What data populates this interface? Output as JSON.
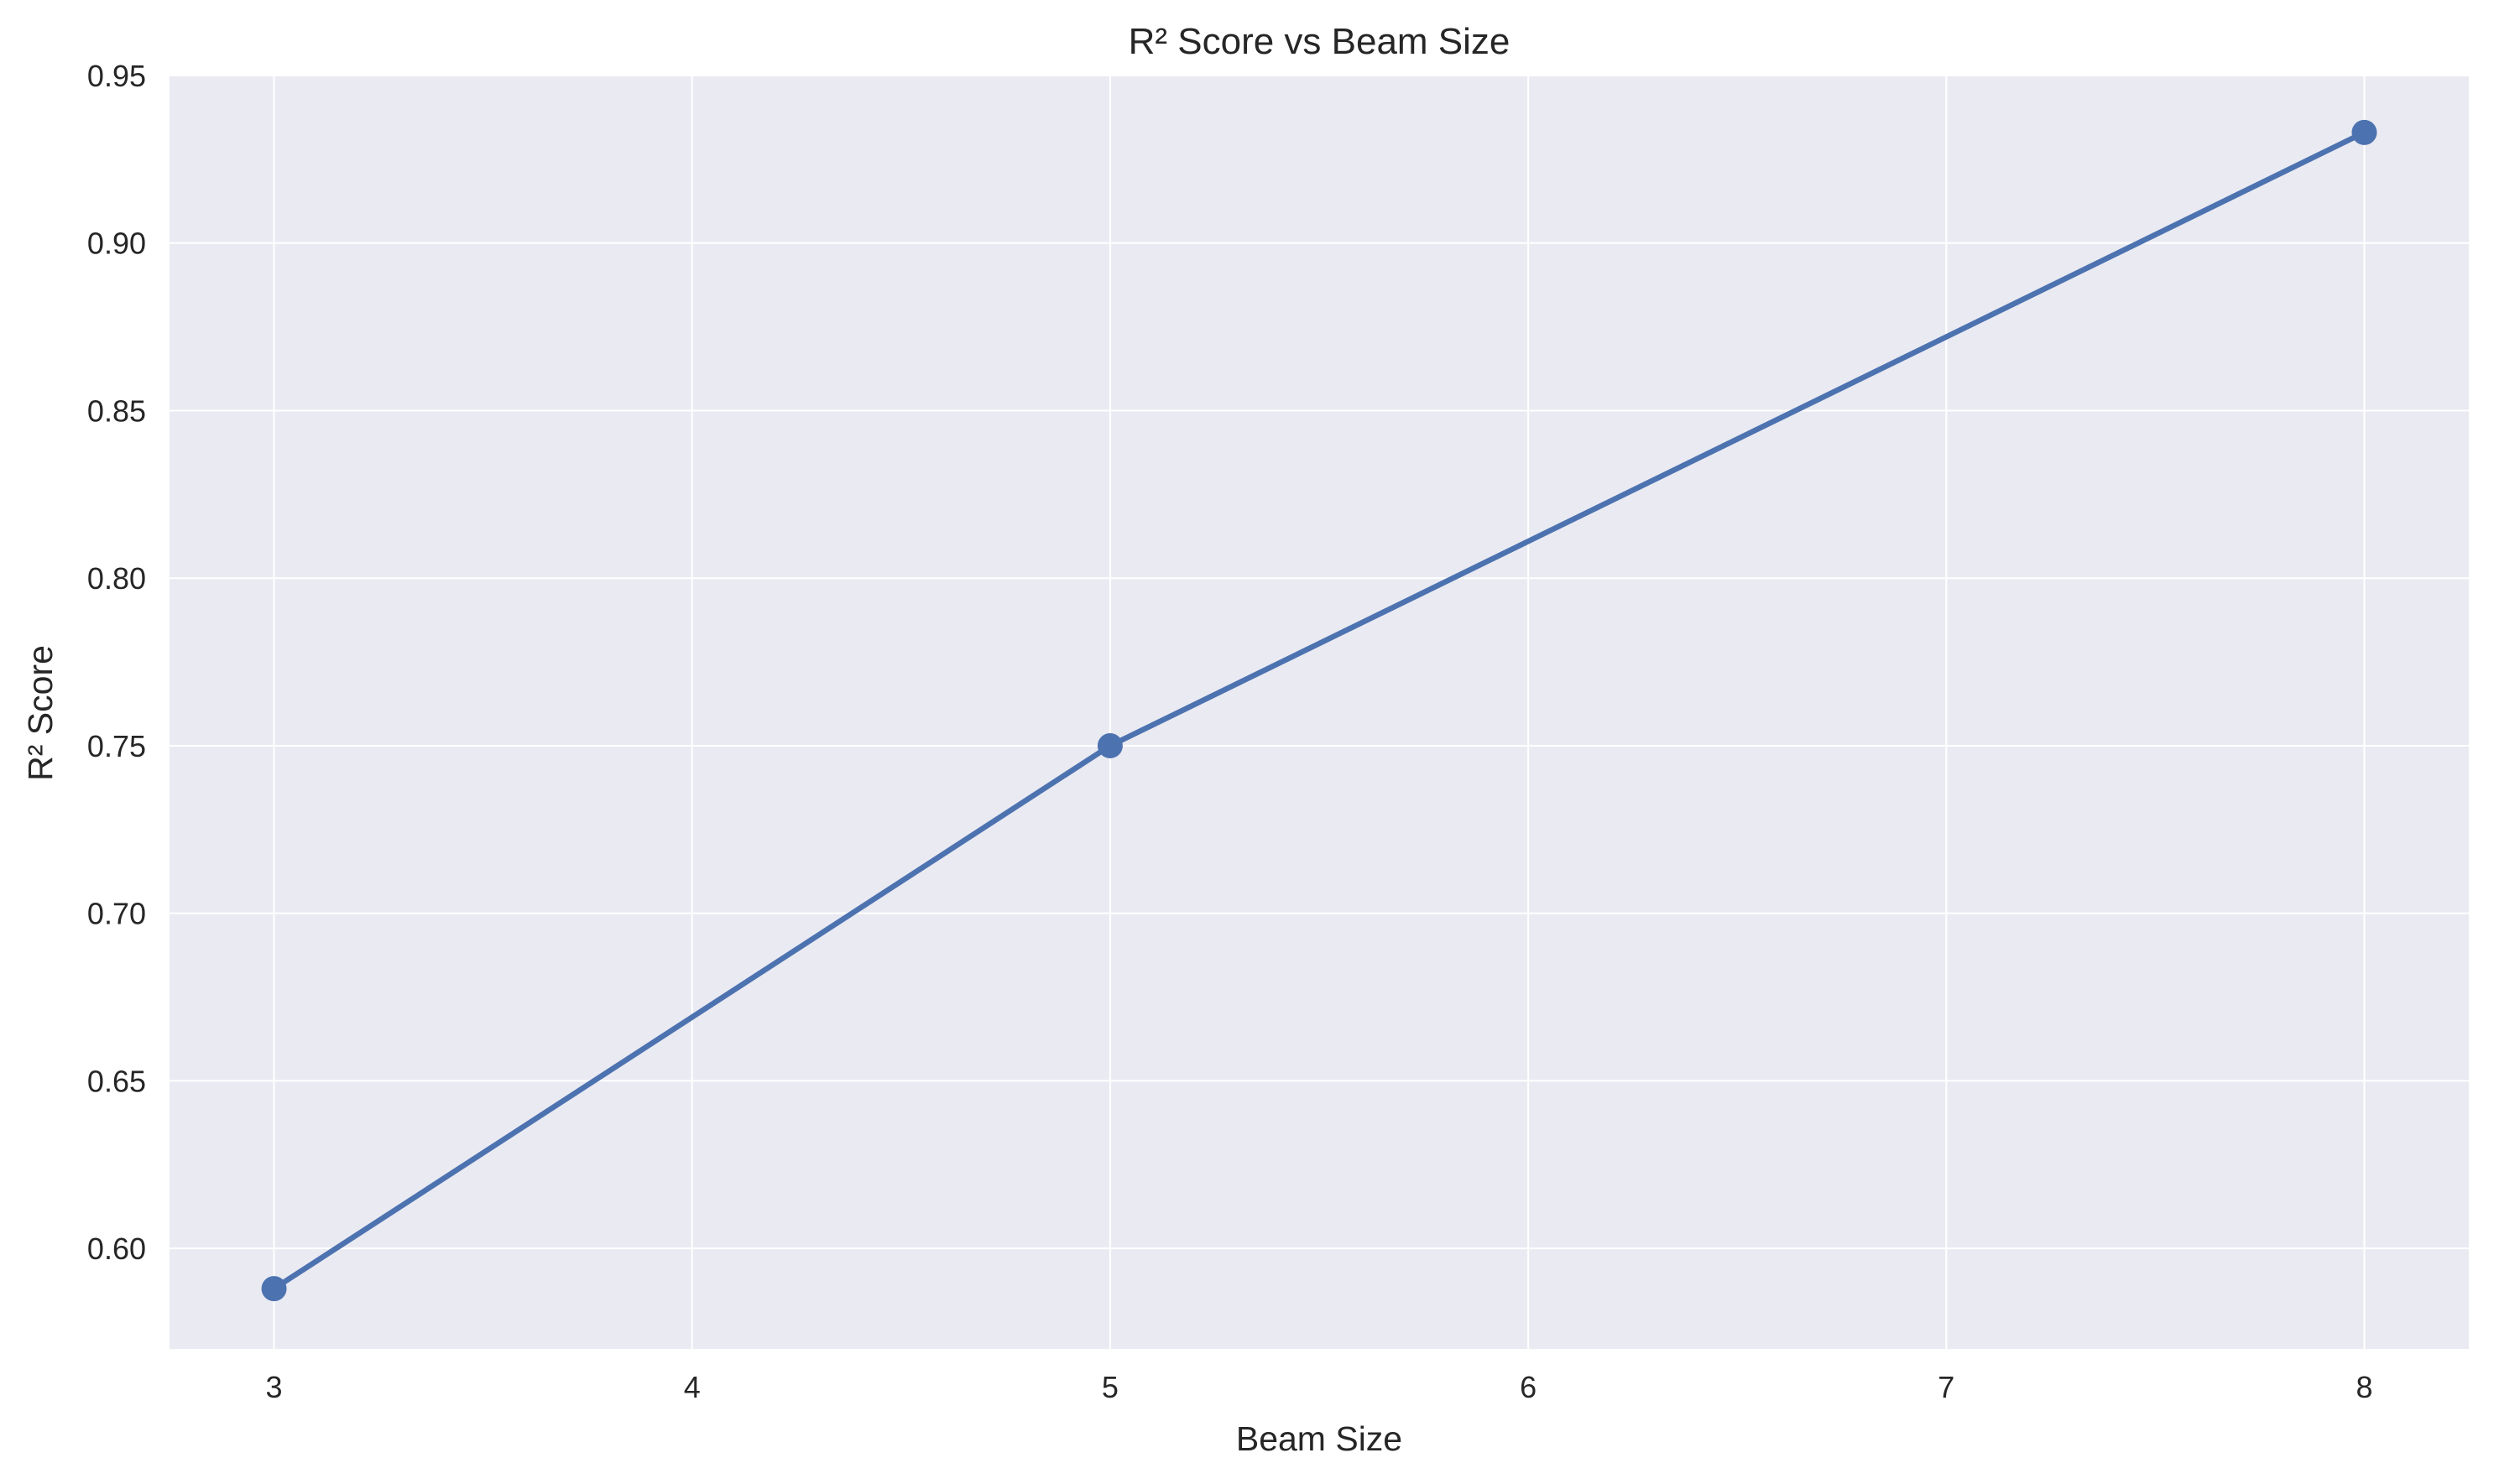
{
  "chart_data": {
    "type": "line",
    "title": "R² Score vs Beam Size",
    "xlabel": "Beam Size",
    "ylabel": "R² Score",
    "x": [
      3,
      5,
      8
    ],
    "series": [
      {
        "values": [
          0.588,
          0.75,
          0.933
        ],
        "color": "#4c72b0",
        "marker": "circle"
      }
    ],
    "xlim": [
      2.75,
      8.25
    ],
    "ylim": [
      0.57,
      0.95
    ],
    "xticks": [
      3,
      4,
      5,
      6,
      7,
      8
    ],
    "xtick_labels": [
      "3",
      "4",
      "5",
      "6",
      "7",
      "8"
    ],
    "yticks": [
      0.6,
      0.65,
      0.7,
      0.75,
      0.8,
      0.85,
      0.9,
      0.95
    ],
    "ytick_labels": [
      "0.60",
      "0.65",
      "0.70",
      "0.75",
      "0.80",
      "0.85",
      "0.90",
      "0.95"
    ],
    "grid": true,
    "background": "#eaeaf2",
    "grid_color": "#ffffff"
  }
}
